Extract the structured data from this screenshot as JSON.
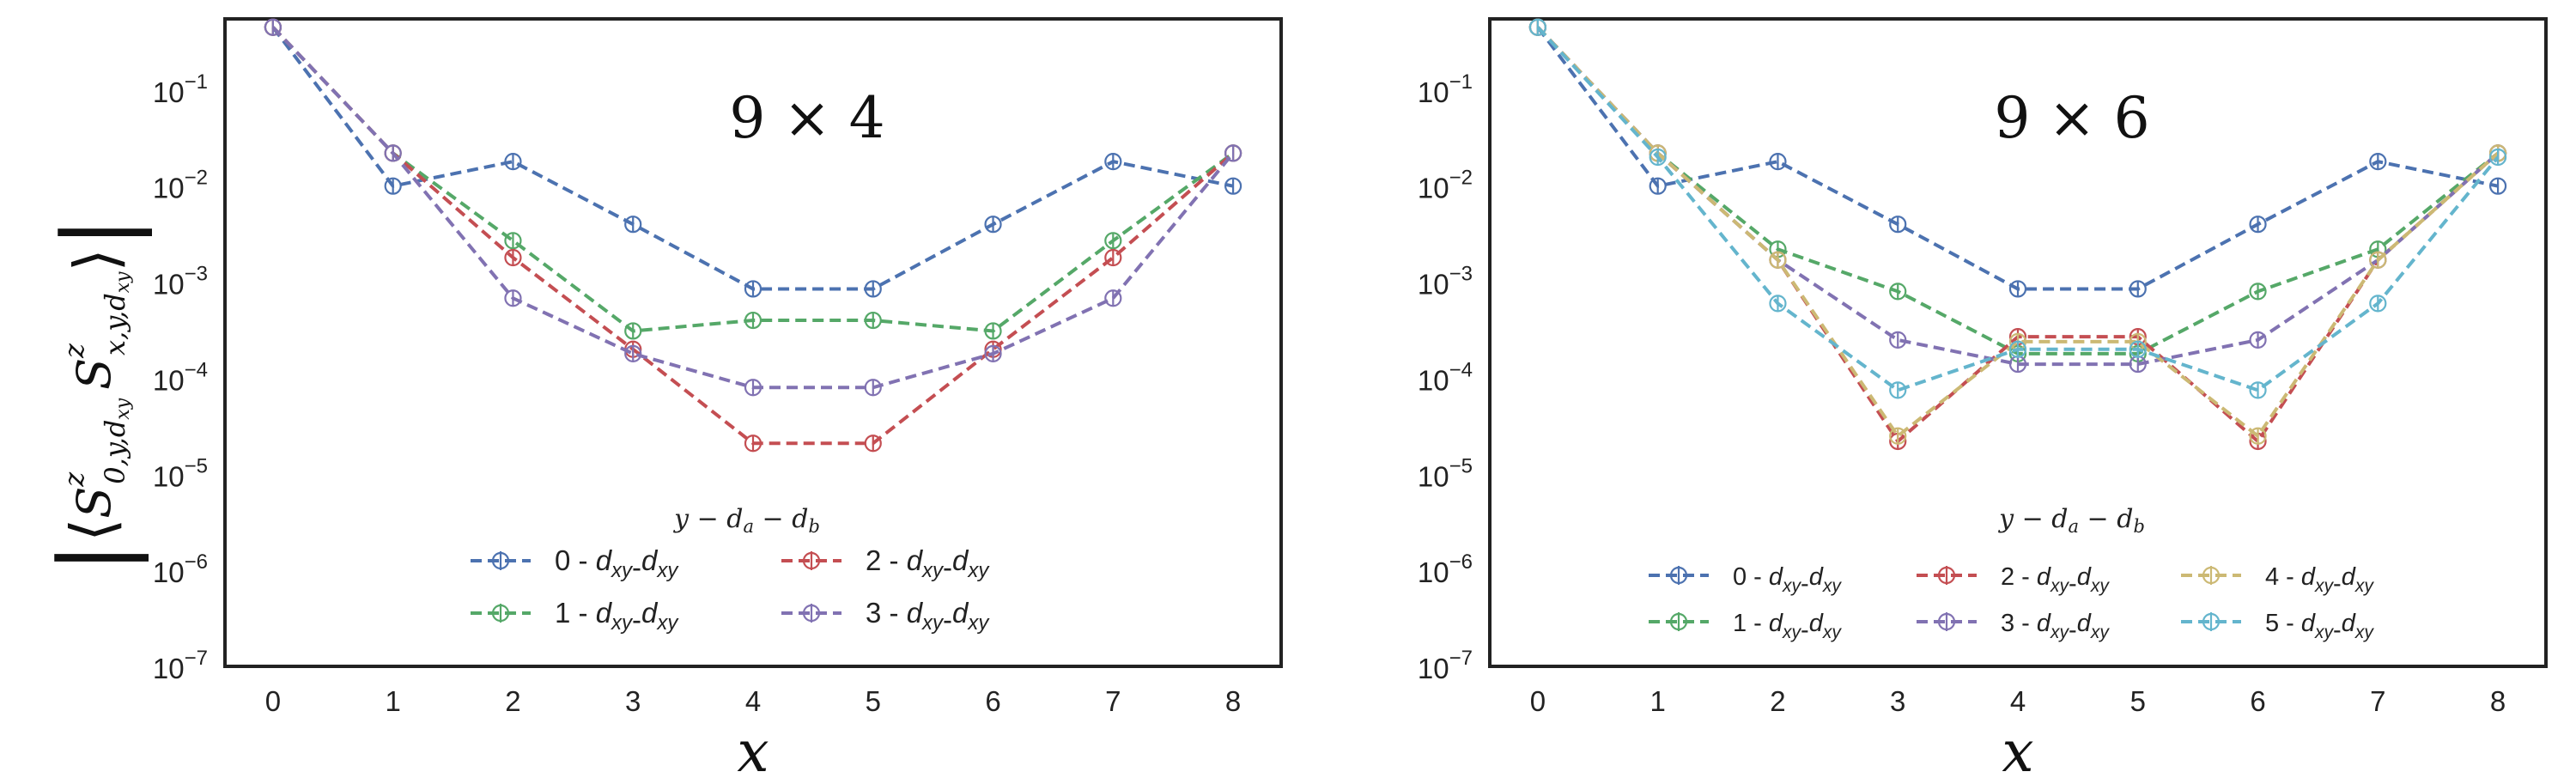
{
  "figure": {
    "ylabel": "|⟨S^z_{0,y,d_xy} S^z_{x,y,d_xy}⟩|"
  },
  "chart_data": [
    {
      "type": "line",
      "title": "9 × 4",
      "xlabel": "x",
      "ylabel": "",
      "yscale": "log",
      "xlim": [
        -0.4,
        8.4
      ],
      "ylim": [
        1e-07,
        0.55
      ],
      "x_ticks": [
        "0",
        "1",
        "2",
        "3",
        "4",
        "5",
        "6",
        "7",
        "8"
      ],
      "y_ticks": [
        {
          "value": 1e-07,
          "base": "10",
          "exp": "−7"
        },
        {
          "value": 1e-06,
          "base": "10",
          "exp": "−6"
        },
        {
          "value": 1e-05,
          "base": "10",
          "exp": "−5"
        },
        {
          "value": 0.0001,
          "base": "10",
          "exp": "−4"
        },
        {
          "value": 0.001,
          "base": "10",
          "exp": "−3"
        },
        {
          "value": 0.01,
          "base": "10",
          "exp": "−2"
        },
        {
          "value": 0.1,
          "base": "10",
          "exp": "−1"
        }
      ],
      "grid": false,
      "legend": {
        "title": "y − d_a − d_b",
        "placement": "lower center",
        "columns": 2
      },
      "x": [
        0,
        1,
        2,
        3,
        4,
        5,
        6,
        7,
        8
      ],
      "series": [
        {
          "name": "0 - dxy-dxy",
          "color": "#4c72b0",
          "values": [
            0.45,
            0.01,
            0.018,
            0.004,
            0.00085,
            0.00085,
            0.004,
            0.018,
            0.01
          ]
        },
        {
          "name": "1 - dxy-dxy",
          "color": "#55a868",
          "values": [
            0.45,
            0.022,
            0.0027,
            0.00031,
            0.0004,
            0.0004,
            0.00031,
            0.0027,
            0.022
          ]
        },
        {
          "name": "2 - dxy-dxy",
          "color": "#c44e52",
          "values": [
            0.45,
            0.022,
            0.0018,
            0.0002,
            2.1e-05,
            2.1e-05,
            0.0002,
            0.0018,
            0.022
          ]
        },
        {
          "name": "3 - dxy-dxy",
          "color": "#8172b2",
          "values": [
            0.45,
            0.022,
            0.00068,
            0.00018,
            8e-05,
            8e-05,
            0.00018,
            0.00068,
            0.022
          ]
        }
      ]
    },
    {
      "type": "line",
      "title": "9 × 6",
      "xlabel": "x",
      "ylabel": "",
      "yscale": "log",
      "xlim": [
        -0.4,
        8.4
      ],
      "ylim": [
        1e-07,
        0.55
      ],
      "x_ticks": [
        "0",
        "1",
        "2",
        "3",
        "4",
        "5",
        "6",
        "7",
        "8"
      ],
      "y_ticks": [
        {
          "value": 1e-07,
          "base": "10",
          "exp": "−7"
        },
        {
          "value": 1e-06,
          "base": "10",
          "exp": "−6"
        },
        {
          "value": 1e-05,
          "base": "10",
          "exp": "−5"
        },
        {
          "value": 0.0001,
          "base": "10",
          "exp": "−4"
        },
        {
          "value": 0.001,
          "base": "10",
          "exp": "−3"
        },
        {
          "value": 0.01,
          "base": "10",
          "exp": "−2"
        },
        {
          "value": 0.1,
          "base": "10",
          "exp": "−1"
        }
      ],
      "grid": false,
      "legend": {
        "title": "y − d_a − d_b",
        "placement": "lower center",
        "columns": 3
      },
      "x": [
        0,
        1,
        2,
        3,
        4,
        5,
        6,
        7,
        8
      ],
      "series": [
        {
          "name": "0 - dxy-dxy",
          "color": "#4c72b0",
          "values": [
            0.45,
            0.01,
            0.018,
            0.004,
            0.00085,
            0.00085,
            0.004,
            0.018,
            0.01
          ]
        },
        {
          "name": "1 - dxy-dxy",
          "color": "#55a868",
          "values": [
            0.45,
            0.022,
            0.0022,
            0.0008,
            0.00018,
            0.00018,
            0.0008,
            0.0022,
            0.022
          ]
        },
        {
          "name": "2 - dxy-dxy",
          "color": "#c44e52",
          "values": [
            0.45,
            0.022,
            0.0017,
            2.2e-05,
            0.00027,
            0.00027,
            2.2e-05,
            0.0017,
            0.022
          ]
        },
        {
          "name": "3 - dxy-dxy",
          "color": "#8172b2",
          "values": [
            0.45,
            0.022,
            0.0017,
            0.00025,
            0.00014,
            0.00014,
            0.00025,
            0.0017,
            0.022
          ]
        },
        {
          "name": "4 - dxy-dxy",
          "color": "#ccb974",
          "values": [
            0.45,
            0.022,
            0.0017,
            2.5e-05,
            0.00024,
            0.00024,
            2.5e-05,
            0.0017,
            0.022
          ]
        },
        {
          "name": "5 - dxy-dxy",
          "color": "#64b5cd",
          "values": [
            0.45,
            0.02,
            0.0006,
            7.5e-05,
            0.0002,
            0.0002,
            7.5e-05,
            0.0006,
            0.02
          ]
        }
      ]
    }
  ]
}
